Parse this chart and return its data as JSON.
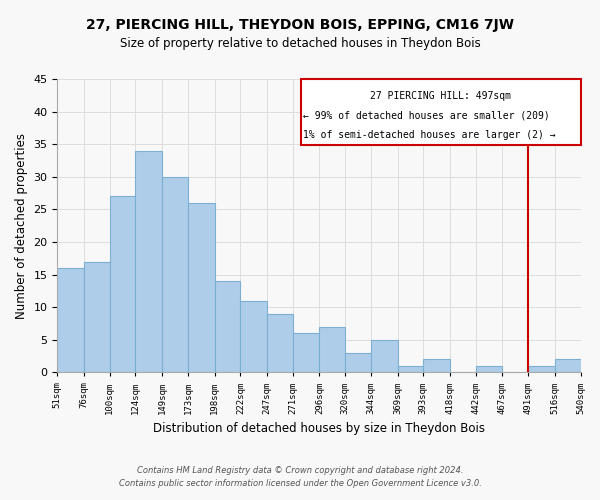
{
  "title": "27, PIERCING HILL, THEYDON BOIS, EPPING, CM16 7JW",
  "subtitle": "Size of property relative to detached houses in Theydon Bois",
  "xlabel": "Distribution of detached houses by size in Theydon Bois",
  "ylabel": "Number of detached properties",
  "bin_labels": [
    "51sqm",
    "76sqm",
    "100sqm",
    "124sqm",
    "149sqm",
    "173sqm",
    "198sqm",
    "222sqm",
    "247sqm",
    "271sqm",
    "296sqm",
    "320sqm",
    "344sqm",
    "369sqm",
    "393sqm",
    "418sqm",
    "442sqm",
    "467sqm",
    "491sqm",
    "516sqm",
    "540sqm"
  ],
  "bin_edges": [
    51,
    76,
    100,
    124,
    149,
    173,
    198,
    222,
    247,
    271,
    296,
    320,
    344,
    369,
    393,
    418,
    442,
    467,
    491,
    516,
    540
  ],
  "counts": [
    16,
    17,
    27,
    34,
    30,
    26,
    14,
    11,
    9,
    6,
    7,
    3,
    5,
    1,
    2,
    0,
    1,
    0,
    1,
    2
  ],
  "bar_color": "#aecde8",
  "bar_edge_color": "#7bafd4",
  "reference_line_x": 491,
  "reference_line_color": "#cc0000",
  "box_text_line1": "27 PIERCING HILL: 497sqm",
  "box_text_line2": "← 99% of detached houses are smaller (209)",
  "box_text_line3": "1% of semi-detached houses are larger (2) →",
  "box_color": "#cc0000",
  "ylim": [
    0,
    45
  ],
  "yticks": [
    0,
    5,
    10,
    15,
    20,
    25,
    30,
    35,
    40,
    45
  ],
  "footnote1": "Contains HM Land Registry data © Crown copyright and database right 2024.",
  "footnote2": "Contains public sector information licensed under the Open Government Licence v3.0.",
  "background_color": "#f8f8f8",
  "grid_color": "#dddddd"
}
